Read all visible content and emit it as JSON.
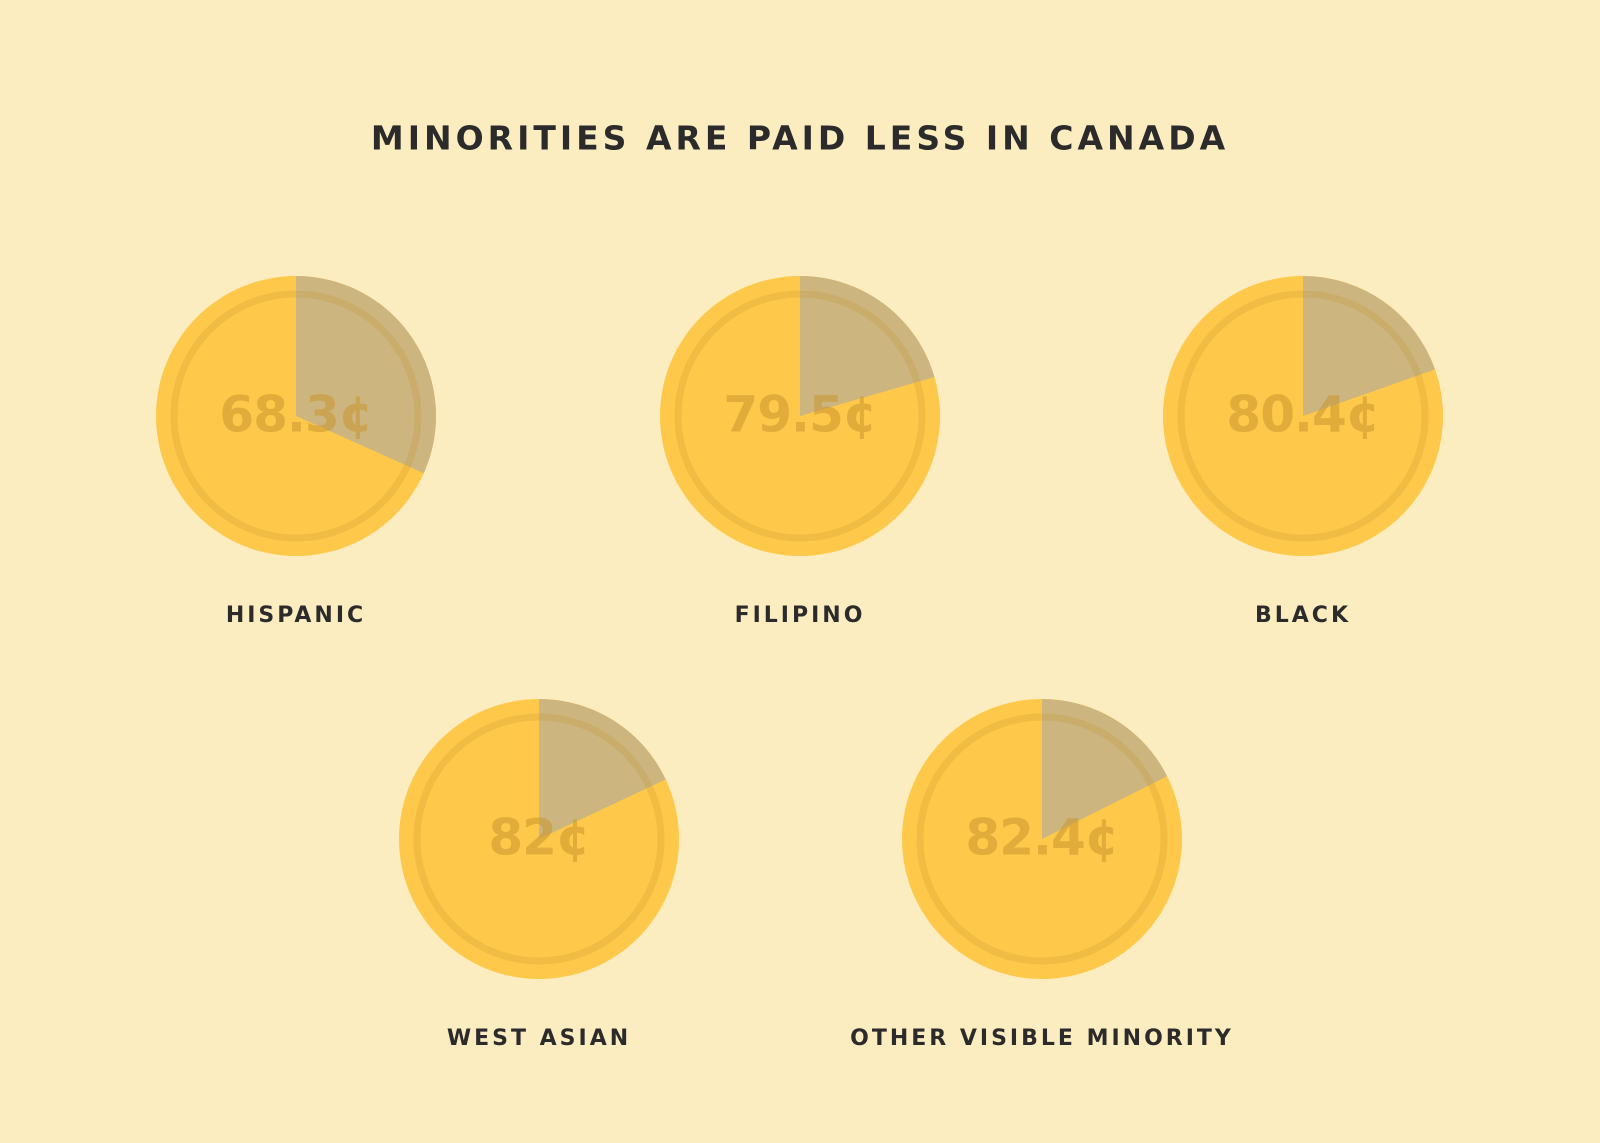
{
  "chart_data": {
    "type": "pie",
    "title": "MINORITIES ARE PAID LESS IN CANADA",
    "categories": [
      "HISPANIC",
      "FILIPINO",
      "BLACK",
      "WEST ASIAN",
      "OTHER VISIBLE MINORITY"
    ],
    "values": [
      68.3,
      79.5,
      80.4,
      82,
      82.4
    ],
    "value_labels": [
      "68.3¢",
      "79.5¢",
      "80.4¢",
      "82¢",
      "82.4¢"
    ],
    "ylim": [
      0,
      100
    ],
    "color": "#fec84a"
  }
}
